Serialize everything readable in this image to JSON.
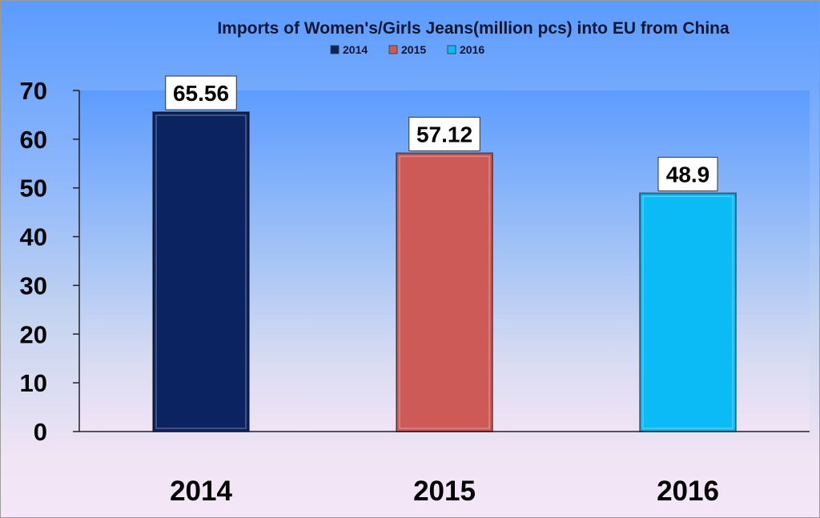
{
  "chart_data": {
    "type": "bar",
    "title": "Imports of Women's/Girls Jeans(million pcs) into EU from China",
    "categories": [
      "2014",
      "2015",
      "2016"
    ],
    "values": [
      65.56,
      57.12,
      48.9
    ],
    "data_labels": [
      "65.56",
      "57.12",
      "48.9"
    ],
    "colors": [
      "#0b2461",
      "#cd5a56",
      "#0abbf5"
    ],
    "legend": {
      "placement": "top",
      "entries": [
        "2014",
        "2015",
        "2016"
      ]
    },
    "ylim": [
      0,
      70
    ],
    "yticks": [
      0,
      10,
      20,
      30,
      40,
      50,
      60,
      70
    ],
    "ytick_labels": [
      "0",
      "10",
      "20",
      "30",
      "40",
      "50",
      "60",
      "70"
    ],
    "grid": false
  }
}
